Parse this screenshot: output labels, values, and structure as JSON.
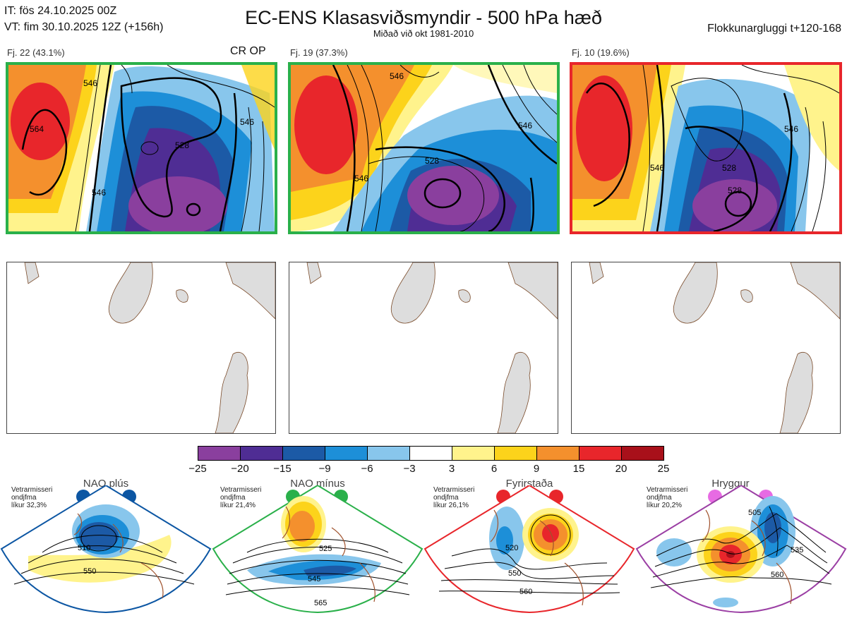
{
  "header": {
    "init_time": "IT: fös 24.10.2025 00Z",
    "valid_time": "VT: fim 30.10.2025 12Z  (+156h)",
    "title": "EC-ENS Klasasviðsmyndir - 500 hPa hæð",
    "subtitle": "Miðað við okt 1981-2010",
    "window": "Flokkunargluggi t+120-168"
  },
  "clusters": [
    {
      "label": "Fj. 22 (43.1%)",
      "members": 22,
      "percent": 43.1,
      "border": "#2ab04a",
      "tag": "CR OP",
      "contour_labels": [
        "564",
        "546",
        "528",
        "546",
        "546"
      ]
    },
    {
      "label": "Fj. 19 (37.3%)",
      "members": 19,
      "percent": 37.3,
      "border": "#2ab04a",
      "contour_labels": [
        "528",
        "546",
        "546",
        "546"
      ]
    },
    {
      "label": "Fj. 10 (19.6%)",
      "members": 10,
      "percent": 19.6,
      "border": "#e8262b",
      "contour_labels": [
        "546",
        "528",
        "528",
        "546"
      ]
    }
  ],
  "colorbar": {
    "ticks": [
      "−25",
      "−20",
      "−15",
      "−9",
      "−6",
      "−3",
      "3",
      "6",
      "9",
      "15",
      "20",
      "25"
    ],
    "colors": [
      "#8a3f9e",
      "#4f2d94",
      "#1c5aa6",
      "#1d8fd8",
      "#88c6ec",
      "#ffffff",
      "#fff38c",
      "#fcd31b",
      "#f4902d",
      "#e8262b",
      "#a8101a"
    ]
  },
  "regimes": [
    {
      "name": "NAO plús",
      "note_lines": [
        "Vetrarmisseri",
        "ondjfma",
        "líkur 32,3%"
      ],
      "probability": 32.3,
      "color": "#0c56a3",
      "labels": [
        "510",
        "550"
      ]
    },
    {
      "name": "NAO mínus",
      "note_lines": [
        "Vetrarmisseri",
        "ondjfma",
        "líkur 21,4%"
      ],
      "probability": 21.4,
      "color": "#2ab04a",
      "labels": [
        "525",
        "545",
        "565"
      ]
    },
    {
      "name": "Fyrirstaða",
      "note_lines": [
        "Vetrarmisseri",
        "ondjfma",
        "líkur 26,1%"
      ],
      "probability": 26.1,
      "color": "#e8262b",
      "labels": [
        "520",
        "550",
        "560"
      ]
    },
    {
      "name": "Hryggur",
      "note_lines": [
        "Vetrarmisseri",
        "ondjfma",
        "líkur 20,2%"
      ],
      "probability": 20.2,
      "color": "#e76be3",
      "labels": [
        "505",
        "535",
        "560"
      ]
    }
  ]
}
